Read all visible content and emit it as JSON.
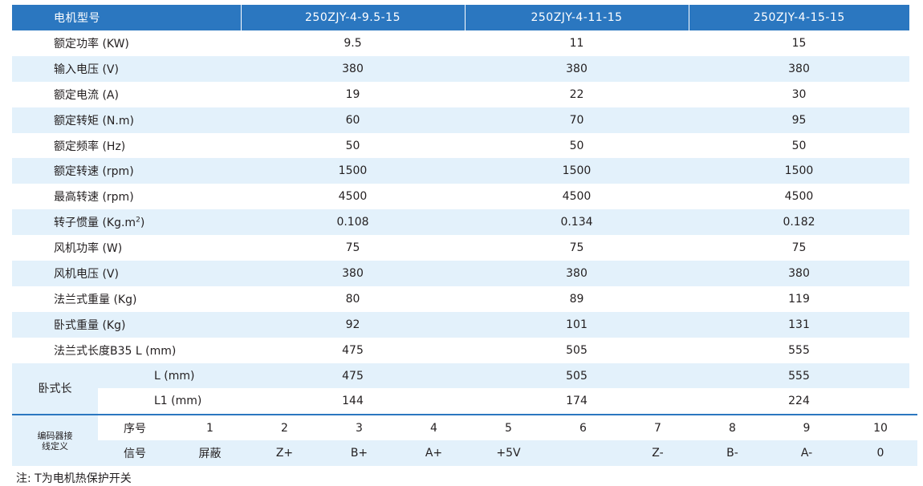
{
  "spec": {
    "header": [
      "电机型号",
      "250ZJY-4-9.5-15",
      "250ZJY-4-11-15",
      "250ZJY-4-15-15"
    ],
    "rows": [
      {
        "label": "额定功率 (KW)",
        "values": [
          "9.5",
          "11",
          "15"
        ]
      },
      {
        "label": "输入电压 (V)",
        "values": [
          "380",
          "380",
          "380"
        ]
      },
      {
        "label": "额定电流 (A)",
        "values": [
          "19",
          "22",
          "30"
        ]
      },
      {
        "label": "额定转矩 (N.m)",
        "values": [
          "60",
          "70",
          "95"
        ]
      },
      {
        "label": "额定频率 (Hz)",
        "values": [
          "50",
          "50",
          "50"
        ]
      },
      {
        "label": "额定转速 (rpm)",
        "values": [
          "1500",
          "1500",
          "1500"
        ]
      },
      {
        "label": "最高转速 (rpm)",
        "values": [
          "4500",
          "4500",
          "4500"
        ]
      },
      {
        "label": "转子惯量 (Kg.m",
        "label_sup": "2",
        "label_end": ")",
        "values": [
          "0.108",
          "0.134",
          "0.182"
        ]
      },
      {
        "label": "风机功率 (W)",
        "values": [
          "75",
          "75",
          "75"
        ]
      },
      {
        "label": "风机电压 (V)",
        "values": [
          "380",
          "380",
          "380"
        ]
      },
      {
        "label": "法兰式重量 (Kg)",
        "values": [
          "80",
          "89",
          "119"
        ]
      },
      {
        "label": "卧式重量 (Kg)",
        "values": [
          "92",
          "101",
          "131"
        ]
      },
      {
        "label": "法兰式长度B35 L (mm)",
        "values": [
          "475",
          "505",
          "555"
        ]
      }
    ],
    "horizontal": {
      "label": "卧式长",
      "rows": [
        {
          "label": "L (mm)",
          "values": [
            "475",
            "505",
            "555"
          ]
        },
        {
          "label": "L1 (mm)",
          "values": [
            "144",
            "174",
            "224"
          ]
        }
      ]
    }
  },
  "encoder": {
    "title_line1": "编码器接",
    "title_line2": "线定义",
    "seq_label": "序号",
    "seq": [
      "1",
      "2",
      "3",
      "4",
      "5",
      "6",
      "7",
      "8",
      "9",
      "10"
    ],
    "sig_label": "信号",
    "signals": [
      "屏蔽",
      "Z+",
      "B+",
      "A+",
      "+5V",
      "",
      "Z-",
      "B-",
      "A-",
      "0"
    ]
  },
  "note": "注: T为电机热保护开关"
}
